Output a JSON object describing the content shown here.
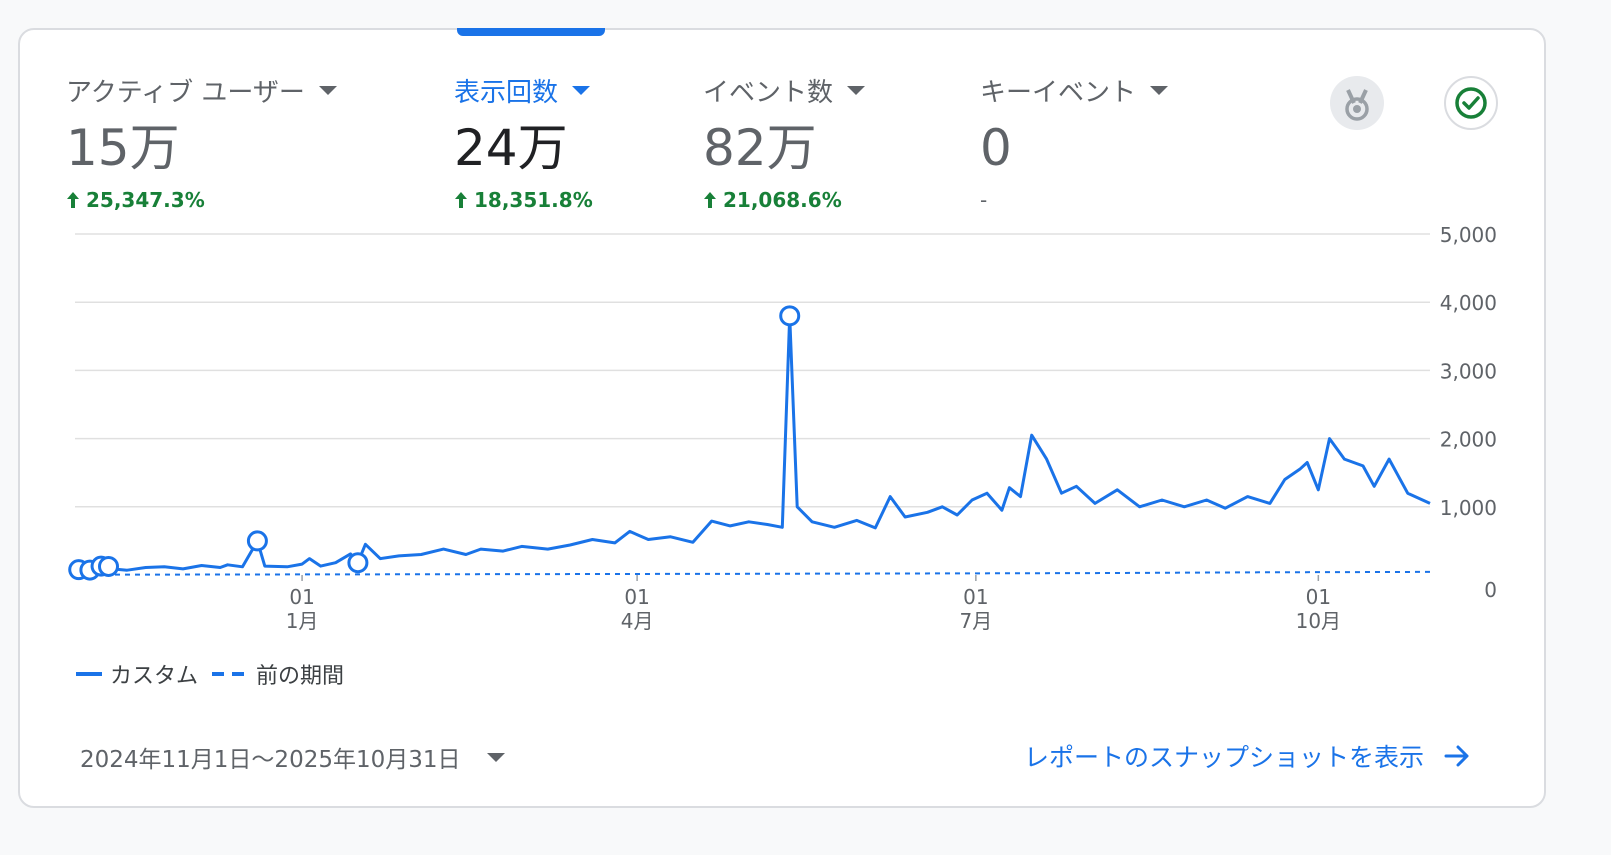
{
  "metrics": [
    {
      "name": "アクティブ ユーザー",
      "value": "15万",
      "change": "25,347.3%",
      "change_dir": "up"
    },
    {
      "name": "表示回数",
      "value": "24万",
      "change": "18,351.8%",
      "change_dir": "up",
      "active": true
    },
    {
      "name": "イベント数",
      "value": "82万",
      "change": "21,068.6%",
      "change_dir": "up"
    },
    {
      "name": "キーイベント",
      "value": "0",
      "change": "-",
      "change_dir": "none"
    }
  ],
  "icons": {
    "medal": "medal-icon",
    "check": "check-circle-icon"
  },
  "colors": {
    "accent": "#1a73e8",
    "positive": "#188038",
    "muted": "#5f6368"
  },
  "chart_data": {
    "type": "line",
    "x_ticks": [
      {
        "date": "2025-01-01",
        "day": "01",
        "month": "1月"
      },
      {
        "date": "2025-04-01",
        "day": "01",
        "month": "4月"
      },
      {
        "date": "2025-07-01",
        "day": "01",
        "month": "7月"
      },
      {
        "date": "2025-10-01",
        "day": "01",
        "month": "10月"
      }
    ],
    "y_ticks": [
      "0",
      "1,000",
      "2,000",
      "3,000",
      "4,000",
      "5,000"
    ],
    "ylim": [
      0,
      5000
    ],
    "xlim": [
      "2024-11-01",
      "2025-10-31"
    ],
    "grid": true,
    "legend": "bottom-left",
    "series": [
      {
        "name": "カスタム",
        "style": "solid",
        "points": [
          [
            "2024-11-01",
            80
          ],
          [
            "2024-11-06",
            70
          ],
          [
            "2024-11-09",
            160
          ],
          [
            "2024-11-11",
            90
          ],
          [
            "2024-11-15",
            70
          ],
          [
            "2024-11-20",
            110
          ],
          [
            "2024-11-25",
            120
          ],
          [
            "2024-11-30",
            90
          ],
          [
            "2024-12-05",
            140
          ],
          [
            "2024-12-10",
            110
          ],
          [
            "2024-12-12",
            150
          ],
          [
            "2024-12-16",
            120
          ],
          [
            "2024-12-20",
            500
          ],
          [
            "2024-12-22",
            130
          ],
          [
            "2024-12-28",
            120
          ],
          [
            "2025-01-01",
            160
          ],
          [
            "2025-01-03",
            240
          ],
          [
            "2025-01-06",
            130
          ],
          [
            "2025-01-10",
            180
          ],
          [
            "2025-01-14",
            310
          ],
          [
            "2025-01-16",
            180
          ],
          [
            "2025-01-18",
            450
          ],
          [
            "2025-01-22",
            240
          ],
          [
            "2025-01-27",
            280
          ],
          [
            "2025-02-02",
            300
          ],
          [
            "2025-02-08",
            380
          ],
          [
            "2025-02-14",
            300
          ],
          [
            "2025-02-18",
            380
          ],
          [
            "2025-02-24",
            350
          ],
          [
            "2025-03-01",
            420
          ],
          [
            "2025-03-08",
            380
          ],
          [
            "2025-03-14",
            440
          ],
          [
            "2025-03-20",
            520
          ],
          [
            "2025-03-26",
            470
          ],
          [
            "2025-03-30",
            640
          ],
          [
            "2025-04-04",
            520
          ],
          [
            "2025-04-10",
            560
          ],
          [
            "2025-04-16",
            480
          ],
          [
            "2025-04-21",
            790
          ],
          [
            "2025-04-26",
            720
          ],
          [
            "2025-05-01",
            780
          ],
          [
            "2025-05-06",
            740
          ],
          [
            "2025-05-10",
            700
          ],
          [
            "2025-05-12",
            3800
          ],
          [
            "2025-05-14",
            1000
          ],
          [
            "2025-05-18",
            780
          ],
          [
            "2025-05-24",
            700
          ],
          [
            "2025-05-30",
            800
          ],
          [
            "2025-06-04",
            690
          ],
          [
            "2025-06-08",
            1150
          ],
          [
            "2025-06-12",
            850
          ],
          [
            "2025-06-18",
            920
          ],
          [
            "2025-06-22",
            1000
          ],
          [
            "2025-06-26",
            880
          ],
          [
            "2025-06-30",
            1100
          ],
          [
            "2025-07-04",
            1200
          ],
          [
            "2025-07-08",
            950
          ],
          [
            "2025-07-10",
            1280
          ],
          [
            "2025-07-13",
            1150
          ],
          [
            "2025-07-16",
            2050
          ],
          [
            "2025-07-20",
            1700
          ],
          [
            "2025-07-24",
            1200
          ],
          [
            "2025-07-28",
            1300
          ],
          [
            "2025-08-02",
            1050
          ],
          [
            "2025-08-08",
            1250
          ],
          [
            "2025-08-14",
            1000
          ],
          [
            "2025-08-20",
            1100
          ],
          [
            "2025-08-26",
            1000
          ],
          [
            "2025-09-01",
            1100
          ],
          [
            "2025-09-06",
            980
          ],
          [
            "2025-09-12",
            1150
          ],
          [
            "2025-09-18",
            1050
          ],
          [
            "2025-09-22",
            1400
          ],
          [
            "2025-09-26",
            1550
          ],
          [
            "2025-09-28",
            1650
          ],
          [
            "2025-10-01",
            1250
          ],
          [
            "2025-10-04",
            2000
          ],
          [
            "2025-10-08",
            1700
          ],
          [
            "2025-10-13",
            1600
          ],
          [
            "2025-10-16",
            1300
          ],
          [
            "2025-10-20",
            1700
          ],
          [
            "2025-10-25",
            1200
          ],
          [
            "2025-10-31",
            1050
          ]
        ]
      },
      {
        "name": "前の期間",
        "style": "dashed",
        "points": [
          [
            "2024-11-01",
            5
          ],
          [
            "2025-02-15",
            12
          ],
          [
            "2025-05-01",
            18
          ],
          [
            "2025-08-01",
            28
          ],
          [
            "2025-09-15",
            40
          ],
          [
            "2025-10-31",
            45
          ]
        ]
      }
    ],
    "annotation_dates": [
      "2024-11-02",
      "2024-11-05",
      "2024-11-08",
      "2024-11-10",
      "2024-12-20",
      "2025-01-16",
      "2025-05-12"
    ]
  },
  "legend": {
    "current": "カスタム",
    "previous": "前の期間"
  },
  "footer": {
    "date_range": "2024年11月1日〜2025年10月31日",
    "report_link": "レポートのスナップショットを表示"
  }
}
